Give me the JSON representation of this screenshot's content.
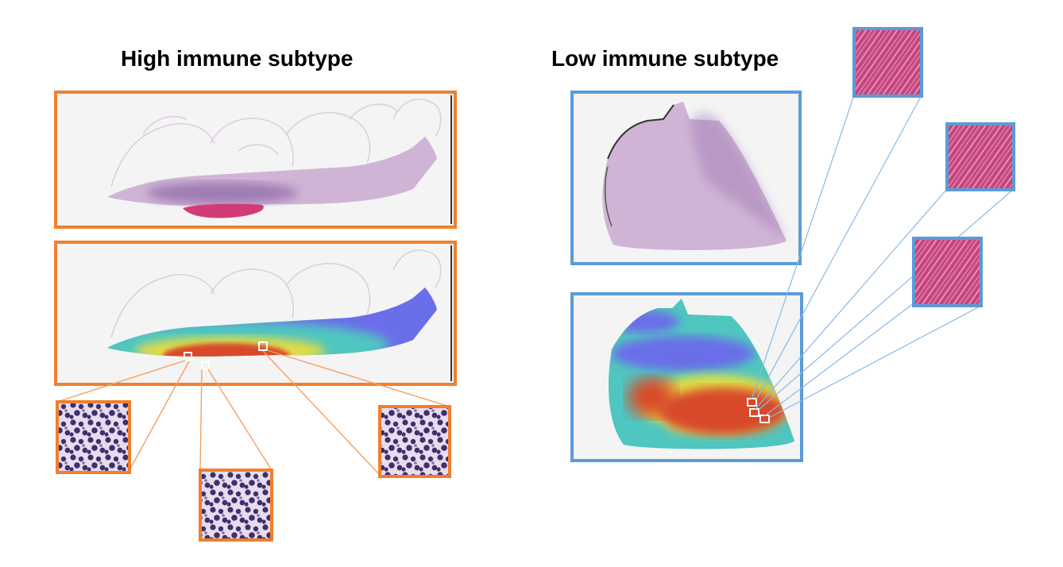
{
  "panels": {
    "high": {
      "title": "High immune subtype",
      "frame_color": "#f07f2c",
      "line_color": "#f5a060"
    },
    "low": {
      "title": "Low immune subtype",
      "frame_color": "#5b9bd5",
      "line_color": "#8ab8e6"
    }
  },
  "colors": {
    "slide_bg": "#f4f4f4",
    "he_tissue": "#c9a8cf",
    "he_dense": "#8e6aa8",
    "he_pink": "#d23b73",
    "heat_low": "#6a6ee8",
    "heat_mid": "#4fc6c0",
    "heat_yel": "#e3dc45",
    "heat_high": "#d84a2c",
    "lymph_bg": "#e7dcec",
    "lymph_nuc": "#3e2f6e",
    "muscle_bg": "#c6447e",
    "muscle_fiber": "#e9a2c2"
  }
}
